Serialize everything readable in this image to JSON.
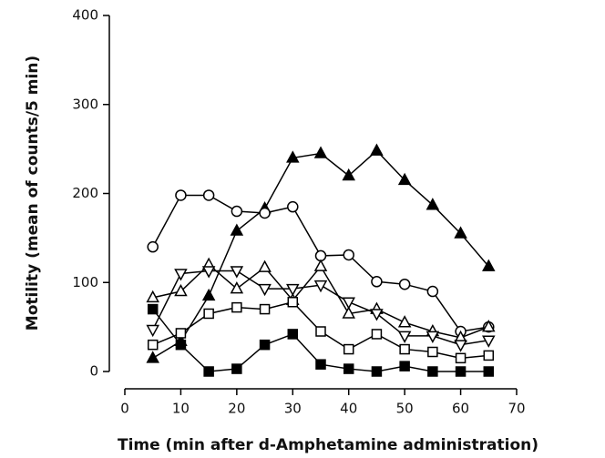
{
  "chart_data": {
    "type": "line",
    "xlabel": "Time (min after d-Amphetamine administration)",
    "ylabel": "Motility (mean of counts/5 min)",
    "x": [
      5,
      10,
      15,
      20,
      25,
      30,
      35,
      40,
      45,
      50,
      55,
      60,
      65
    ],
    "xlim": [
      0,
      70
    ],
    "xticks": [
      0,
      10,
      20,
      30,
      40,
      50,
      60,
      70
    ],
    "ylim": [
      0,
      400
    ],
    "yticks": [
      0,
      100,
      200,
      300,
      400
    ],
    "series": [
      {
        "marker": "triangle",
        "filled": true,
        "color": "#000000",
        "values": [
          15,
          34,
          85,
          158,
          183,
          240,
          245,
          220,
          248,
          215,
          187,
          155,
          118
        ]
      },
      {
        "marker": "circle",
        "filled": false,
        "color": "#000000",
        "values": [
          140,
          198,
          198,
          180,
          178,
          185,
          130,
          131,
          101,
          98,
          90,
          45,
          50
        ]
      },
      {
        "marker": "triangle",
        "filled": false,
        "color": "#000000",
        "values": [
          83,
          90,
          120,
          93,
          117,
          80,
          118,
          65,
          70,
          55,
          45,
          38,
          50
        ]
      },
      {
        "marker": "triangle-down",
        "filled": false,
        "color": "#000000",
        "values": [
          47,
          110,
          113,
          113,
          93,
          93,
          97,
          78,
          65,
          40,
          40,
          30,
          35
        ]
      },
      {
        "marker": "square",
        "filled": false,
        "color": "#000000",
        "values": [
          30,
          43,
          65,
          72,
          70,
          78,
          45,
          25,
          42,
          25,
          22,
          15,
          18
        ]
      },
      {
        "marker": "square",
        "filled": true,
        "color": "#000000",
        "values": [
          70,
          30,
          0,
          3,
          30,
          42,
          8,
          3,
          0,
          6,
          0,
          0,
          0
        ]
      }
    ]
  }
}
